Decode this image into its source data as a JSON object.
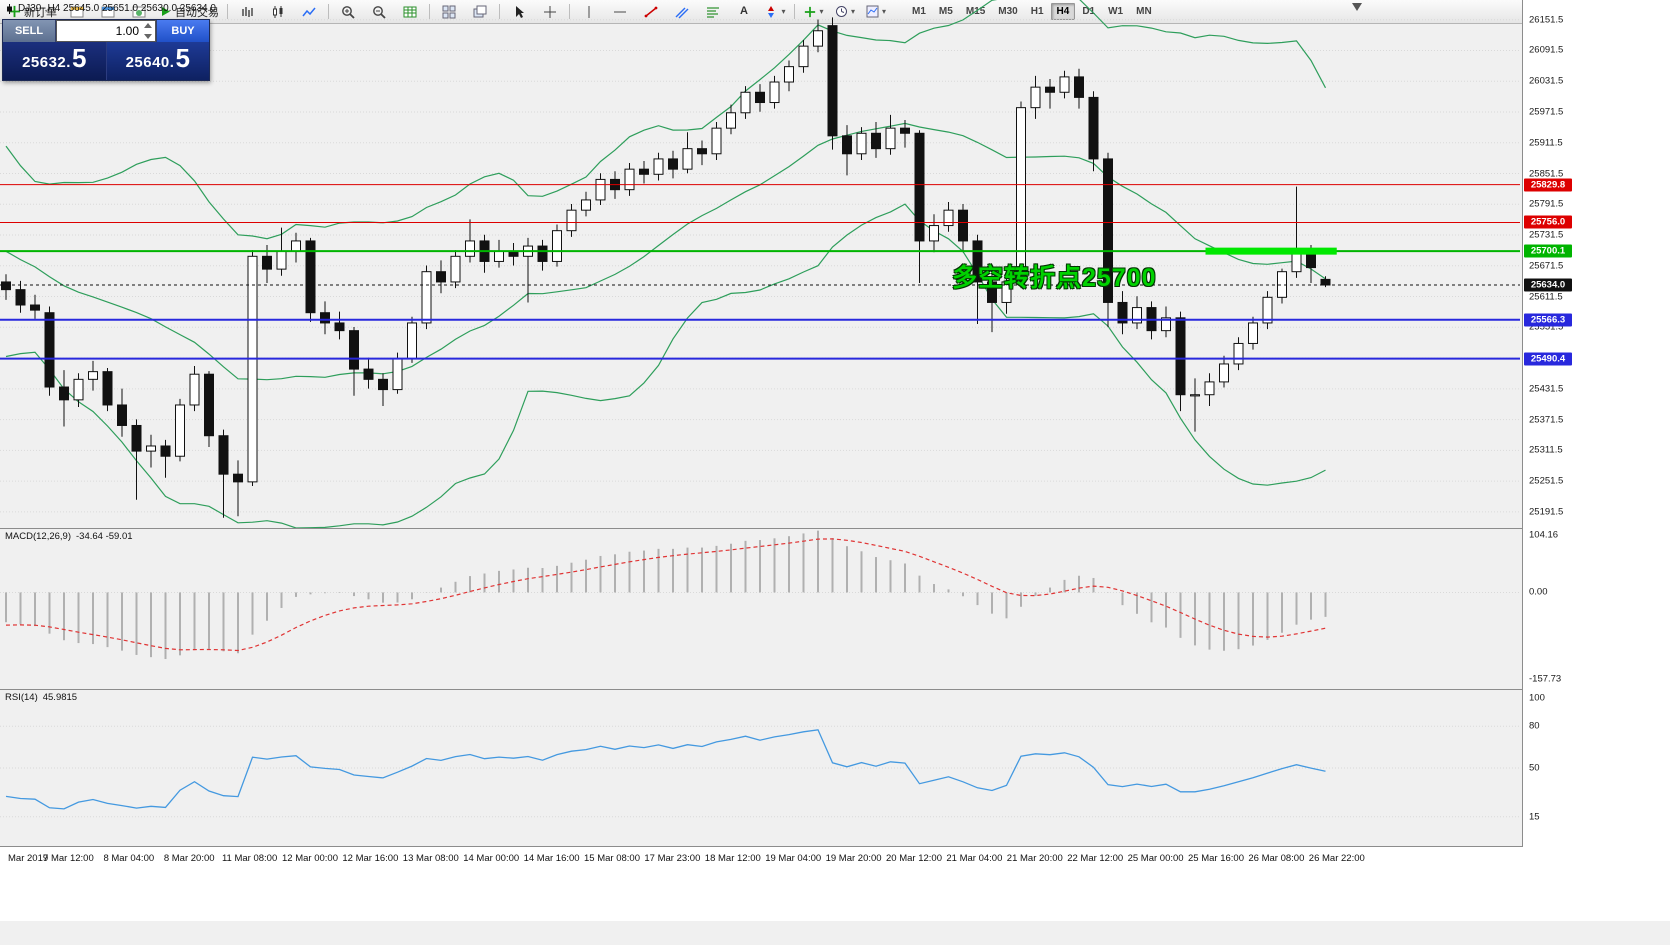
{
  "window": {
    "title_ohlc": "DJ30-,H4 25645.0 25651.0 25630.0 25634.0"
  },
  "toolbar": {
    "new_order_label": "新订单",
    "autotrading_label": "自动交易",
    "timeframes": [
      "M1",
      "M5",
      "M15",
      "M30",
      "H1",
      "H4",
      "D1",
      "W1",
      "MN"
    ],
    "active_timeframe": "H4"
  },
  "one_click": {
    "sell_label": "SELL",
    "buy_label": "BUY",
    "volume": "1.00",
    "sell_price": {
      "main": "25632.",
      "pips": "5"
    },
    "buy_price": {
      "main": "25640.",
      "pips": "5"
    }
  },
  "annotation": {
    "text": "多空转折点25700",
    "color": "#00d200"
  },
  "chart_data": {
    "type": "candlestick",
    "symbol": "DJ30-",
    "period": "H4",
    "ohlc_header": {
      "open": "25645.0",
      "high": "25651.0",
      "low": "25630.0",
      "close": "25634.0"
    },
    "style": {
      "background": "#ffffff",
      "bull_color": "#ffffff",
      "bear_color": "#111111",
      "outline_color": "#111111",
      "band_color": "#2e9e5b",
      "grid_color": "#d9d9d9"
    },
    "y_axis": {
      "labels": [
        26151.5,
        26091.5,
        26031.5,
        25971.5,
        25911.5,
        25851.5,
        25791.5,
        25731.5,
        25671.5,
        25611.5,
        25551.5,
        25491.5,
        25431.5,
        25371.5,
        25311.5,
        25251.5,
        25191.5
      ]
    },
    "x_axis": {
      "labels": [
        "Mar 2019",
        "7 Mar 12:00",
        "8 Mar 04:00",
        "8 Mar 20:00",
        "11 Mar 08:00",
        "12 Mar 00:00",
        "12 Mar 16:00",
        "13 Mar 08:00",
        "14 Mar 00:00",
        "14 Mar 16:00",
        "15 Mar 08:00",
        "17 Mar 23:00",
        "18 Mar 12:00",
        "19 Mar 04:00",
        "19 Mar 20:00",
        "20 Mar 12:00",
        "21 Mar 04:00",
        "21 Mar 20:00",
        "22 Mar 12:00",
        "25 Mar 00:00",
        "25 Mar 16:00",
        "26 Mar 08:00",
        "26 Mar 22:00"
      ]
    },
    "candles": [
      [
        25640,
        25655,
        25605,
        25625
      ],
      [
        25625,
        25642,
        25580,
        25595
      ],
      [
        25595,
        25615,
        25568,
        25585
      ],
      [
        25580,
        25592,
        25418,
        25435
      ],
      [
        25435,
        25468,
        25358,
        25410
      ],
      [
        25410,
        25462,
        25396,
        25450
      ],
      [
        25450,
        25486,
        25428,
        25465
      ],
      [
        25465,
        25472,
        25388,
        25400
      ],
      [
        25400,
        25432,
        25338,
        25360
      ],
      [
        25360,
        25372,
        25215,
        25310
      ],
      [
        25310,
        25342,
        25278,
        25320
      ],
      [
        25320,
        25332,
        25258,
        25300
      ],
      [
        25300,
        25412,
        25290,
        25400
      ],
      [
        25400,
        25476,
        25388,
        25460
      ],
      [
        25460,
        25466,
        25318,
        25340
      ],
      [
        25340,
        25352,
        25180,
        25265
      ],
      [
        25265,
        25292,
        25183,
        25250
      ],
      [
        25250,
        25702,
        25242,
        25690
      ],
      [
        25690,
        25712,
        25638,
        25665
      ],
      [
        25665,
        25746,
        25652,
        25700
      ],
      [
        25700,
        25736,
        25678,
        25720
      ],
      [
        25720,
        25726,
        25562,
        25580
      ],
      [
        25580,
        25602,
        25538,
        25560
      ],
      [
        25560,
        25582,
        25528,
        25545
      ],
      [
        25545,
        25552,
        25418,
        25470
      ],
      [
        25470,
        25492,
        25432,
        25450
      ],
      [
        25450,
        25462,
        25398,
        25430
      ],
      [
        25430,
        25502,
        25422,
        25490
      ],
      [
        25490,
        25572,
        25482,
        25560
      ],
      [
        25560,
        25672,
        25548,
        25660
      ],
      [
        25660,
        25682,
        25618,
        25640
      ],
      [
        25640,
        25702,
        25628,
        25690
      ],
      [
        25690,
        25762,
        25678,
        25720
      ],
      [
        25720,
        25732,
        25658,
        25680
      ],
      [
        25680,
        25722,
        25668,
        25700
      ],
      [
        25700,
        25716,
        25672,
        25690
      ],
      [
        25690,
        25726,
        25600,
        25710
      ],
      [
        25710,
        25722,
        25662,
        25680
      ],
      [
        25680,
        25752,
        25670,
        25740
      ],
      [
        25740,
        25792,
        25728,
        25780
      ],
      [
        25780,
        25816,
        25768,
        25800
      ],
      [
        25800,
        25852,
        25790,
        25840
      ],
      [
        25840,
        25856,
        25802,
        25820
      ],
      [
        25820,
        25872,
        25808,
        25860
      ],
      [
        25860,
        25876,
        25832,
        25850
      ],
      [
        25850,
        25892,
        25838,
        25880
      ],
      [
        25880,
        25896,
        25842,
        25860
      ],
      [
        25860,
        25932,
        25852,
        25900
      ],
      [
        25900,
        25916,
        25868,
        25890
      ],
      [
        25890,
        25952,
        25878,
        25940
      ],
      [
        25940,
        25986,
        25928,
        25970
      ],
      [
        25970,
        26022,
        25958,
        26010
      ],
      [
        26010,
        26026,
        25972,
        25990
      ],
      [
        25990,
        26042,
        25978,
        26030
      ],
      [
        26030,
        26072,
        26012,
        26060
      ],
      [
        26060,
        26112,
        26048,
        26100
      ],
      [
        26100,
        26152,
        26088,
        26130
      ],
      [
        26140,
        26156,
        25898,
        25925
      ],
      [
        25925,
        25946,
        25848,
        25890
      ],
      [
        25890,
        25942,
        25878,
        25930
      ],
      [
        25930,
        25952,
        25882,
        25900
      ],
      [
        25900,
        25966,
        25888,
        25940
      ],
      [
        25940,
        25956,
        25902,
        25930
      ],
      [
        25930,
        25936,
        25638,
        25720
      ],
      [
        25720,
        25772,
        25698,
        25750
      ],
      [
        25750,
        25796,
        25738,
        25780
      ],
      [
        25780,
        25792,
        25698,
        25720
      ],
      [
        25720,
        25732,
        25558,
        25640
      ],
      [
        25640,
        25662,
        25542,
        25600
      ],
      [
        25600,
        25656,
        25578,
        25640
      ],
      [
        25640,
        25992,
        25628,
        25980
      ],
      [
        25980,
        26042,
        25958,
        26020
      ],
      [
        26020,
        26036,
        25978,
        26010
      ],
      [
        26010,
        26052,
        25998,
        26040
      ],
      [
        26040,
        26056,
        25978,
        26000
      ],
      [
        26000,
        26012,
        25856,
        25880
      ],
      [
        25880,
        25892,
        25552,
        25600
      ],
      [
        25600,
        25622,
        25538,
        25560
      ],
      [
        25560,
        25612,
        25548,
        25590
      ],
      [
        25590,
        25602,
        25528,
        25545
      ],
      [
        25545,
        25592,
        25532,
        25570
      ],
      [
        25570,
        25582,
        25388,
        25420
      ],
      [
        25420,
        25452,
        25348,
        25420
      ],
      [
        25420,
        25462,
        25398,
        25445
      ],
      [
        25445,
        25496,
        25434,
        25480
      ],
      [
        25480,
        25532,
        25468,
        25520
      ],
      [
        25520,
        25572,
        25508,
        25560
      ],
      [
        25560,
        25622,
        25548,
        25610
      ],
      [
        25610,
        25666,
        25598,
        25660
      ],
      [
        25660,
        25826,
        25648,
        25705
      ],
      [
        25705,
        25712,
        25638,
        25668
      ],
      [
        25645,
        25651,
        25630,
        25634
      ]
    ],
    "history_closes_estimated": [
      25960,
      25920,
      25870,
      25820,
      25760,
      25700,
      25650,
      25600,
      25560,
      25520,
      25560,
      25620,
      25700,
      25760,
      25800,
      25760,
      25720,
      25700,
      25690,
      25660
    ],
    "bollinger": {
      "period": 20,
      "deviation": 2
    },
    "price_lines": [
      {
        "price": 25829.8,
        "label": "25829.8",
        "color": "#dd0000",
        "thickness": 1
      },
      {
        "price": 25756.0,
        "label": "25756.0",
        "color": "#dd0000",
        "thickness": 1
      },
      {
        "price": 25700.1,
        "label": "25700.1",
        "color": "#00b400",
        "thickness": 2
      },
      {
        "price": 25634.0,
        "label": "25634.0",
        "color": "#101010",
        "thickness": 1,
        "style": "current"
      },
      {
        "price": 25566.3,
        "label": "25566.3",
        "color": "#2828dd",
        "thickness": 2
      },
      {
        "price": 25490.4,
        "label": "25490.4",
        "color": "#2828dd",
        "thickness": 2
      }
    ],
    "highlight_segment": {
      "price": 25700.1,
      "start_index": 83,
      "end_index": 91.5,
      "color": "#00e800"
    },
    "macd": {
      "label": "MACD(12,26,9)",
      "values_text": "-34.64 -59.01",
      "fast": 12,
      "slow": 26,
      "signal": 9,
      "scale_labels": [
        "104.16",
        "0.00",
        "-157.73"
      ],
      "scale_values": [
        104.16,
        0,
        -157.73
      ],
      "histogram_color": "#b0b0b0",
      "signal_color": "#e03434"
    },
    "rsi": {
      "label": "RSI(14)",
      "value_text": "45.9815",
      "period": 14,
      "scale_labels": [
        "100",
        "80",
        "50",
        "15"
      ],
      "scale_values": [
        100,
        80,
        50,
        15
      ],
      "line_color": "#4499e0"
    }
  }
}
